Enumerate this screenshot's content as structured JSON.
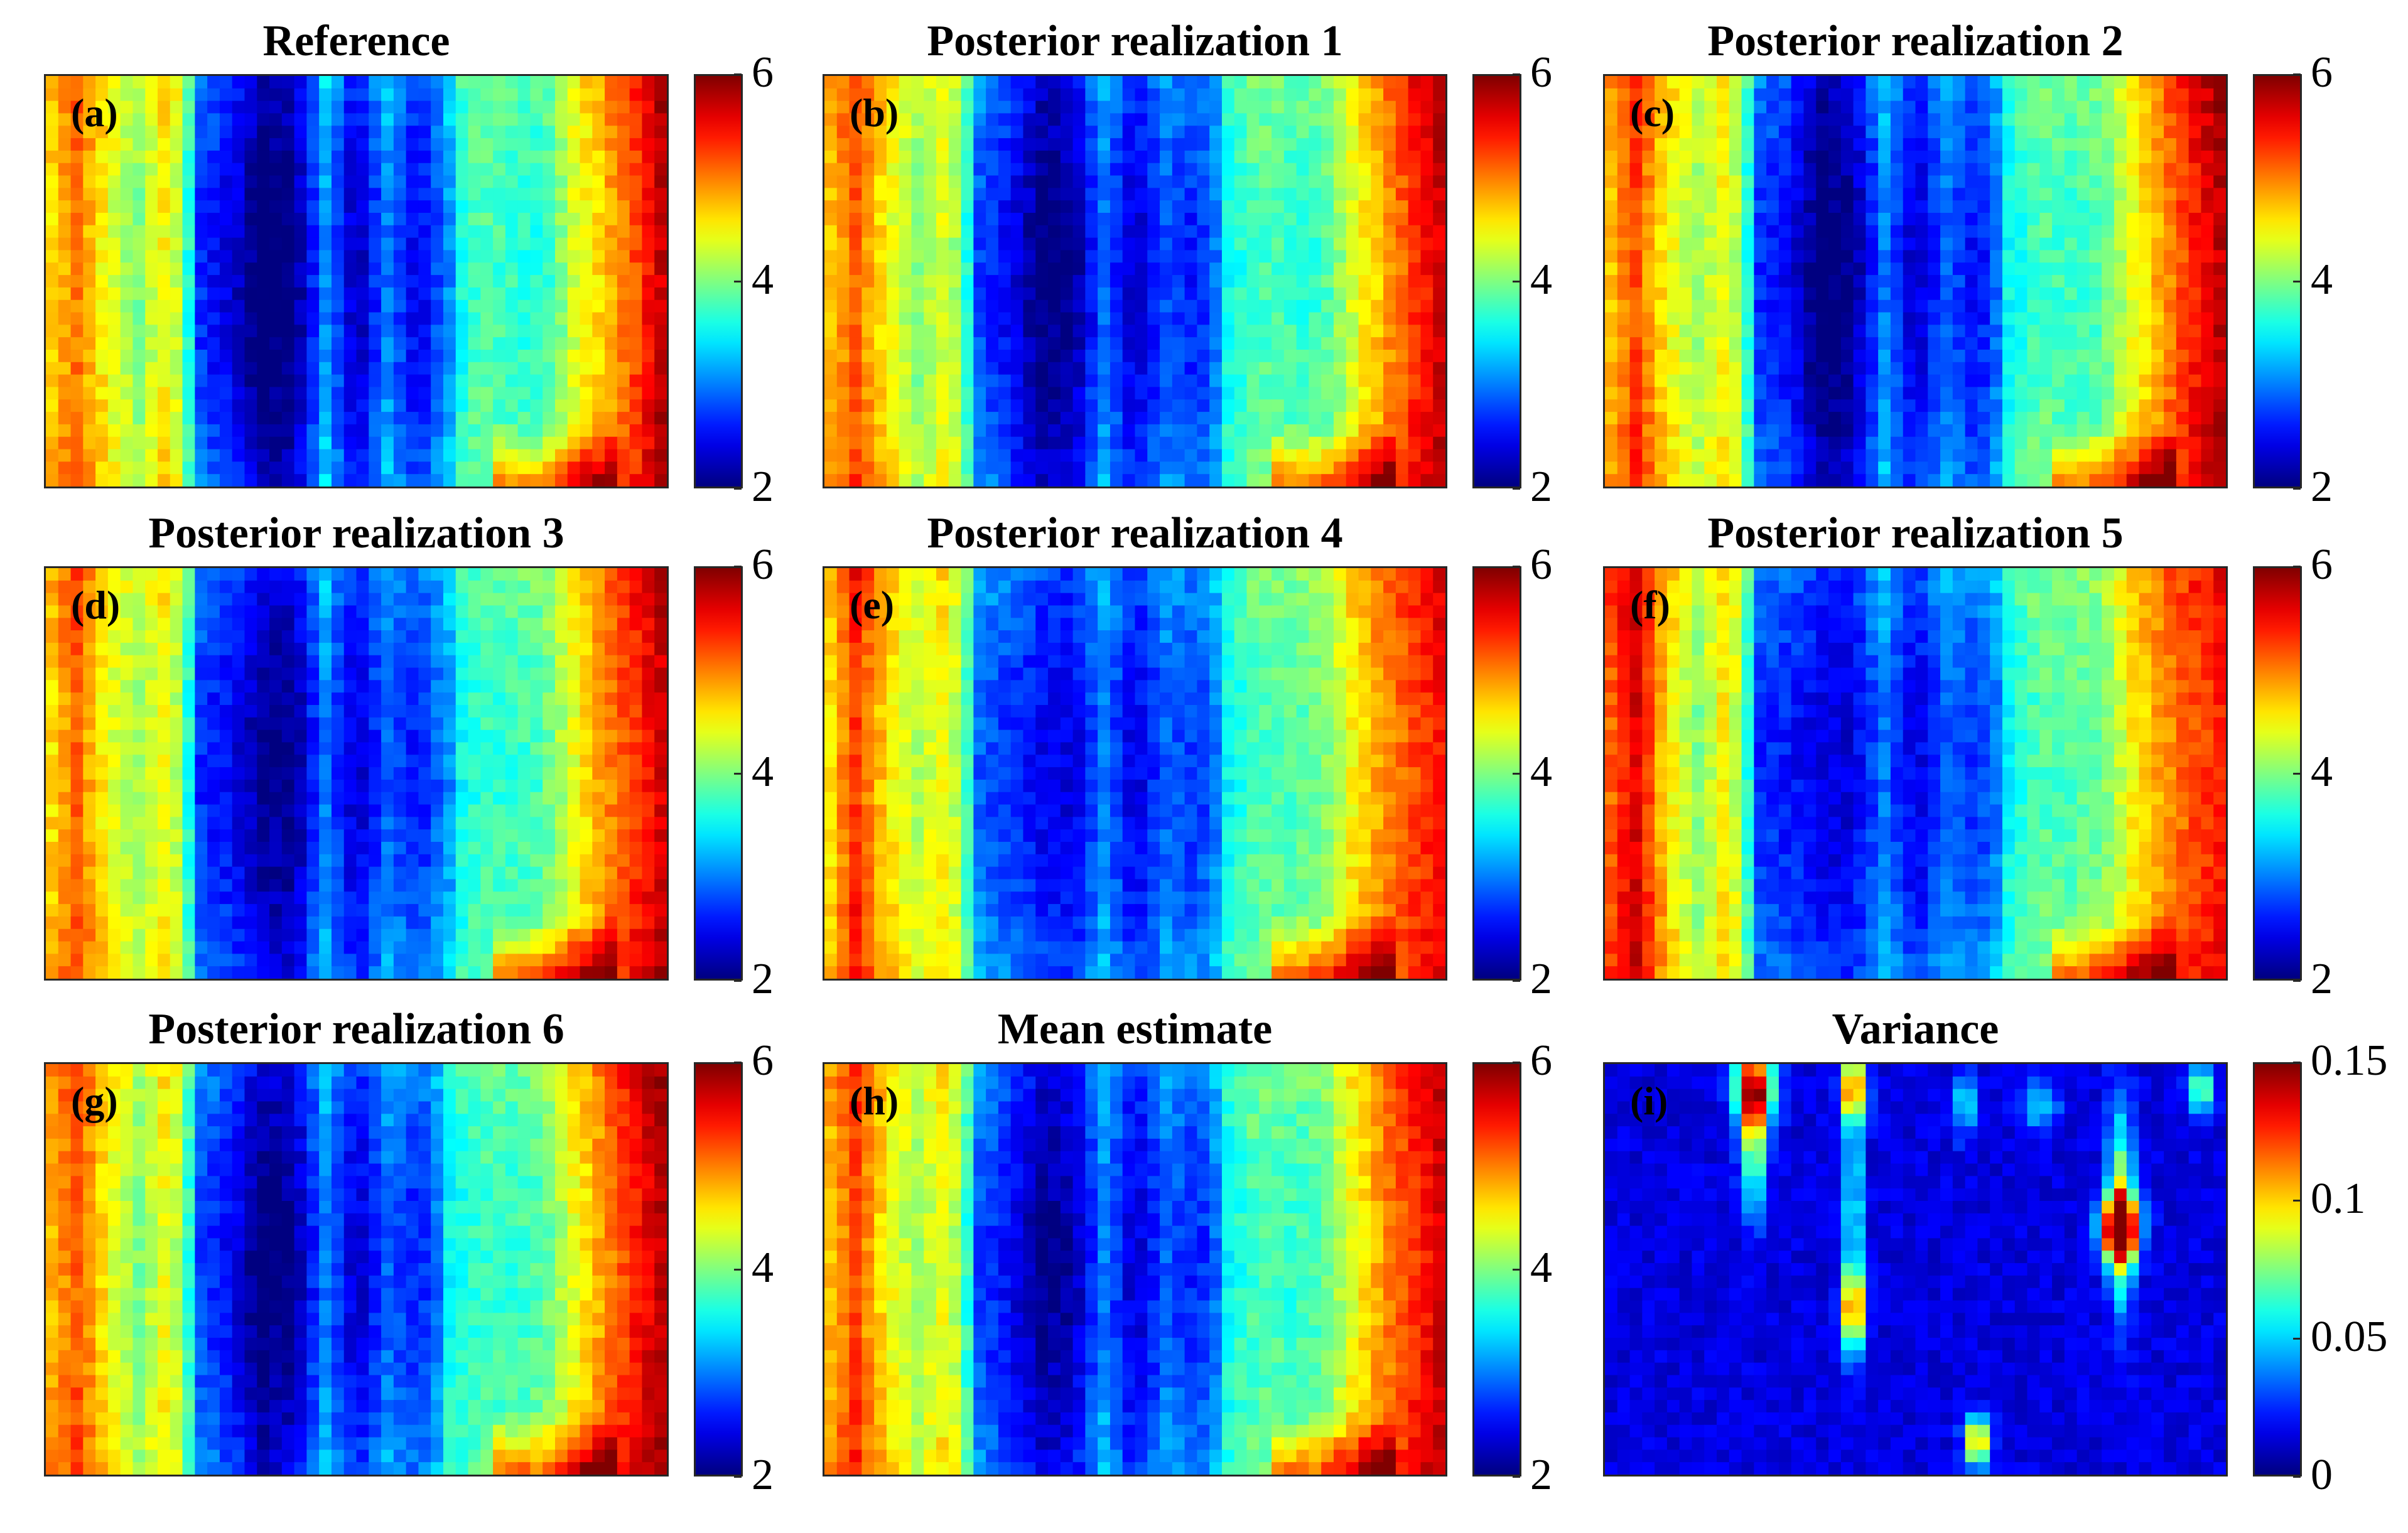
{
  "colors": {
    "colormap": "jet",
    "axis": "#262626"
  },
  "chart_data": [
    {
      "type": "heatmap",
      "id": "a",
      "panel_label": "(a)",
      "title": "Reference",
      "colorbar": {
        "range": [
          2,
          6
        ],
        "ticks": [
          "2",
          "4",
          "6"
        ]
      },
      "column_profile": [
        4.5,
        5.0,
        4.4,
        4.0,
        4.6,
        3.0,
        2.7,
        2.2,
        2.3,
        3.4,
        2.5,
        3.3,
        2.7,
        3.4,
        3.8,
        3.7,
        3.6,
        4.3,
        4.7,
        5.2,
        5.8
      ]
    },
    {
      "type": "heatmap",
      "id": "b",
      "panel_label": "(b)",
      "title": "Posterior realization 1",
      "colorbar": {
        "range": [
          2,
          6
        ],
        "ticks": [
          "2",
          "4",
          "6"
        ]
      },
      "column_profile": [
        4.6,
        5.1,
        4.5,
        4.0,
        4.4,
        3.1,
        2.8,
        2.3,
        2.4,
        3.2,
        2.6,
        3.1,
        2.9,
        3.5,
        3.8,
        3.7,
        3.7,
        4.3,
        4.8,
        5.3,
        5.7
      ]
    },
    {
      "type": "heatmap",
      "id": "c",
      "panel_label": "(c)",
      "title": "Posterior realization 2",
      "colorbar": {
        "range": [
          2,
          6
        ],
        "ticks": [
          "2",
          "4",
          "6"
        ]
      },
      "column_profile": [
        4.6,
        5.2,
        4.5,
        4.1,
        4.5,
        3.0,
        2.8,
        2.2,
        2.4,
        3.3,
        2.6,
        3.2,
        2.8,
        3.5,
        3.8,
        3.7,
        3.8,
        4.4,
        4.9,
        5.4,
        5.8
      ]
    },
    {
      "type": "heatmap",
      "id": "d",
      "panel_label": "(d)",
      "title": "Posterior realization 3",
      "colorbar": {
        "range": [
          2,
          6
        ],
        "ticks": [
          "2",
          "4",
          "6"
        ]
      },
      "column_profile": [
        4.5,
        5.1,
        4.4,
        4.1,
        4.5,
        3.0,
        2.8,
        2.4,
        2.4,
        3.3,
        2.6,
        3.2,
        2.9,
        3.4,
        3.7,
        3.7,
        3.8,
        4.4,
        4.9,
        5.3,
        5.7
      ]
    },
    {
      "type": "heatmap",
      "id": "e",
      "panel_label": "(e)",
      "title": "Posterior realization 4",
      "colorbar": {
        "range": [
          2,
          6
        ],
        "ticks": [
          "2",
          "4",
          "6"
        ]
      },
      "column_profile": [
        4.4,
        5.3,
        4.6,
        4.2,
        4.5,
        3.2,
        3.0,
        2.8,
        2.7,
        3.3,
        2.7,
        3.2,
        3.0,
        3.5,
        3.8,
        3.8,
        3.9,
        4.5,
        4.9,
        5.2,
        5.5
      ]
    },
    {
      "type": "heatmap",
      "id": "f",
      "panel_label": "(f)",
      "title": "Posterior realization 5",
      "colorbar": {
        "range": [
          2,
          6
        ],
        "ticks": [
          "2",
          "4",
          "6"
        ]
      },
      "column_profile": [
        5.0,
        5.6,
        4.6,
        4.0,
        4.6,
        3.0,
        2.9,
        2.7,
        2.7,
        3.3,
        2.7,
        3.2,
        3.0,
        3.5,
        3.8,
        3.8,
        3.9,
        4.5,
        4.9,
        5.2,
        5.4
      ]
    },
    {
      "type": "heatmap",
      "id": "g",
      "panel_label": "(g)",
      "title": "Posterior realization 6",
      "colorbar": {
        "range": [
          2,
          6
        ],
        "ticks": [
          "2",
          "4",
          "6"
        ]
      },
      "column_profile": [
        4.7,
        5.1,
        4.5,
        4.0,
        4.5,
        3.1,
        2.8,
        2.3,
        2.4,
        3.3,
        2.6,
        3.2,
        2.9,
        3.5,
        3.7,
        3.7,
        3.8,
        4.4,
        4.9,
        5.4,
        5.8
      ]
    },
    {
      "type": "heatmap",
      "id": "h",
      "panel_label": "(h)",
      "title": "Mean estimate",
      "colorbar": {
        "range": [
          2,
          6
        ],
        "ticks": [
          "2",
          "4",
          "6"
        ]
      },
      "column_profile": [
        4.6,
        5.2,
        4.5,
        4.1,
        4.5,
        3.1,
        2.8,
        2.4,
        2.5,
        3.3,
        2.6,
        3.2,
        2.9,
        3.5,
        3.8,
        3.7,
        3.8,
        4.4,
        4.9,
        5.3,
        5.7
      ]
    },
    {
      "type": "heatmap",
      "id": "i",
      "panel_label": "(i)",
      "title": "Variance",
      "colorbar": {
        "range": [
          0,
          0.15
        ],
        "ticks": [
          "0",
          "0.05",
          "0.1",
          "0.15"
        ]
      },
      "hotspots": [
        {
          "col": 0.24,
          "row": 0.06,
          "value": 0.13,
          "wx": 0.03,
          "wy": 0.1
        },
        {
          "col": 0.24,
          "row": 0.22,
          "value": 0.06,
          "wx": 0.02,
          "wy": 0.15
        },
        {
          "col": 0.4,
          "row": 0.06,
          "value": 0.1,
          "wx": 0.02,
          "wy": 0.08
        },
        {
          "col": 0.4,
          "row": 0.6,
          "value": 0.09,
          "wx": 0.02,
          "wy": 0.1
        },
        {
          "col": 0.4,
          "row": 0.35,
          "value": 0.05,
          "wx": 0.015,
          "wy": 0.3
        },
        {
          "col": 0.6,
          "row": 0.92,
          "value": 0.1,
          "wx": 0.02,
          "wy": 0.06
        },
        {
          "col": 0.58,
          "row": 0.1,
          "value": 0.04,
          "wx": 0.02,
          "wy": 0.08
        },
        {
          "col": 0.83,
          "row": 0.4,
          "value": 0.15,
          "wx": 0.03,
          "wy": 0.08
        },
        {
          "col": 0.83,
          "row": 0.35,
          "value": 0.07,
          "wx": 0.02,
          "wy": 0.25
        },
        {
          "col": 0.96,
          "row": 0.06,
          "value": 0.07,
          "wx": 0.02,
          "wy": 0.06
        },
        {
          "col": 0.7,
          "row": 0.1,
          "value": 0.04,
          "wx": 0.03,
          "wy": 0.06
        }
      ]
    }
  ]
}
